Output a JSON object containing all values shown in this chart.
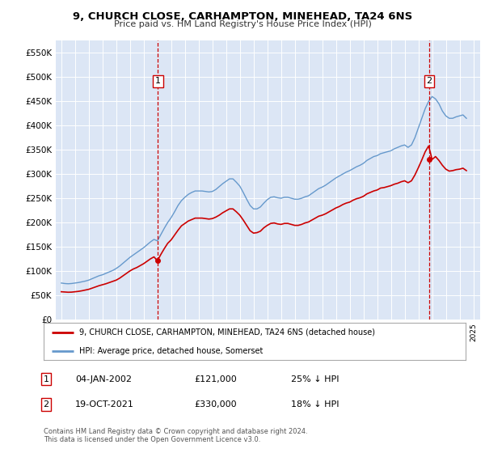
{
  "title": "9, CHURCH CLOSE, CARHAMPTON, MINEHEAD, TA24 6NS",
  "subtitle": "Price paid vs. HM Land Registry's House Price Index (HPI)",
  "ylim": [
    0,
    575000
  ],
  "xlim": [
    1994.6,
    2025.5
  ],
  "yticks": [
    0,
    50000,
    100000,
    150000,
    200000,
    250000,
    300000,
    350000,
    400000,
    450000,
    500000,
    550000
  ],
  "ytick_labels": [
    "£0",
    "£50K",
    "£100K",
    "£150K",
    "£200K",
    "£250K",
    "£300K",
    "£350K",
    "£400K",
    "£450K",
    "£500K",
    "£550K"
  ],
  "background_color": "#dce6f5",
  "hpi_color": "#6699cc",
  "price_color": "#cc0000",
  "sale1_x": 2002.03,
  "sale1_y": 121000,
  "sale1_label": "1",
  "sale1_date": "04-JAN-2002",
  "sale1_price": "£121,000",
  "sale1_hpi": "25% ↓ HPI",
  "sale2_x": 2021.8,
  "sale2_y": 330000,
  "sale2_label": "2",
  "sale2_date": "19-OCT-2021",
  "sale2_price": "£330,000",
  "sale2_hpi": "18% ↓ HPI",
  "legend_label1": "9, CHURCH CLOSE, CARHAMPTON, MINEHEAD, TA24 6NS (detached house)",
  "legend_label2": "HPI: Average price, detached house, Somerset",
  "footer": "Contains HM Land Registry data © Crown copyright and database right 2024.\nThis data is licensed under the Open Government Licence v3.0.",
  "hpi_data_x": [
    1995.0,
    1995.25,
    1995.5,
    1995.75,
    1996.0,
    1996.25,
    1996.5,
    1996.75,
    1997.0,
    1997.25,
    1997.5,
    1997.75,
    1998.0,
    1998.25,
    1998.5,
    1998.75,
    1999.0,
    1999.25,
    1999.5,
    1999.75,
    2000.0,
    2000.25,
    2000.5,
    2000.75,
    2001.0,
    2001.25,
    2001.5,
    2001.75,
    2002.0,
    2002.25,
    2002.5,
    2002.75,
    2003.0,
    2003.25,
    2003.5,
    2003.75,
    2004.0,
    2004.25,
    2004.5,
    2004.75,
    2005.0,
    2005.25,
    2005.5,
    2005.75,
    2006.0,
    2006.25,
    2006.5,
    2006.75,
    2007.0,
    2007.25,
    2007.5,
    2007.75,
    2008.0,
    2008.25,
    2008.5,
    2008.75,
    2009.0,
    2009.25,
    2009.5,
    2009.75,
    2010.0,
    2010.25,
    2010.5,
    2010.75,
    2011.0,
    2011.25,
    2011.5,
    2011.75,
    2012.0,
    2012.25,
    2012.5,
    2012.75,
    2013.0,
    2013.25,
    2013.5,
    2013.75,
    2014.0,
    2014.25,
    2014.5,
    2014.75,
    2015.0,
    2015.25,
    2015.5,
    2015.75,
    2016.0,
    2016.25,
    2016.5,
    2016.75,
    2017.0,
    2017.25,
    2017.5,
    2017.75,
    2018.0,
    2018.25,
    2018.5,
    2018.75,
    2019.0,
    2019.25,
    2019.5,
    2019.75,
    2020.0,
    2020.25,
    2020.5,
    2020.75,
    2021.0,
    2021.25,
    2021.5,
    2021.75,
    2022.0,
    2022.25,
    2022.5,
    2022.75,
    2023.0,
    2023.25,
    2023.5,
    2023.75,
    2024.0,
    2024.25,
    2024.5
  ],
  "hpi_data_y": [
    75000,
    74000,
    73500,
    74000,
    75000,
    76000,
    77500,
    79000,
    81000,
    84000,
    87000,
    90000,
    92000,
    95000,
    98000,
    101000,
    105000,
    110000,
    116000,
    122000,
    128000,
    133000,
    138000,
    143000,
    148000,
    154000,
    160000,
    165000,
    162000,
    175000,
    188000,
    200000,
    210000,
    222000,
    235000,
    245000,
    252000,
    258000,
    262000,
    265000,
    265000,
    265000,
    264000,
    263000,
    264000,
    268000,
    274000,
    280000,
    285000,
    290000,
    290000,
    283000,
    275000,
    262000,
    248000,
    235000,
    228000,
    228000,
    232000,
    240000,
    247000,
    252000,
    253000,
    251000,
    250000,
    252000,
    252000,
    250000,
    248000,
    248000,
    250000,
    253000,
    255000,
    260000,
    265000,
    270000,
    273000,
    277000,
    282000,
    287000,
    292000,
    296000,
    300000,
    304000,
    307000,
    311000,
    315000,
    318000,
    322000,
    328000,
    332000,
    336000,
    338000,
    342000,
    344000,
    346000,
    348000,
    352000,
    355000,
    358000,
    360000,
    355000,
    360000,
    375000,
    395000,
    415000,
    435000,
    450000,
    460000,
    455000,
    445000,
    430000,
    420000,
    415000,
    415000,
    418000,
    420000,
    422000,
    415000
  ],
  "price_data_x": [
    1995.0,
    1995.25,
    1995.5,
    1995.75,
    1996.0,
    1996.25,
    1996.5,
    1996.75,
    1997.0,
    1997.25,
    1997.5,
    1997.75,
    1998.0,
    1998.25,
    1998.5,
    1998.75,
    1999.0,
    1999.25,
    1999.5,
    1999.75,
    2000.0,
    2000.25,
    2000.5,
    2000.75,
    2001.0,
    2001.25,
    2001.5,
    2001.75,
    2002.0,
    2002.25,
    2002.5,
    2002.75,
    2003.0,
    2003.25,
    2003.5,
    2003.75,
    2004.0,
    2004.25,
    2004.5,
    2004.75,
    2005.0,
    2005.25,
    2005.5,
    2005.75,
    2006.0,
    2006.25,
    2006.5,
    2006.75,
    2007.0,
    2007.25,
    2007.5,
    2007.75,
    2008.0,
    2008.25,
    2008.5,
    2008.75,
    2009.0,
    2009.25,
    2009.5,
    2009.75,
    2010.0,
    2010.25,
    2010.5,
    2010.75,
    2011.0,
    2011.25,
    2011.5,
    2011.75,
    2012.0,
    2012.25,
    2012.5,
    2012.75,
    2013.0,
    2013.25,
    2013.5,
    2013.75,
    2014.0,
    2014.25,
    2014.5,
    2014.75,
    2015.0,
    2015.25,
    2015.5,
    2015.75,
    2016.0,
    2016.25,
    2016.5,
    2016.75,
    2017.0,
    2017.25,
    2017.5,
    2017.75,
    2018.0,
    2018.25,
    2018.5,
    2018.75,
    2019.0,
    2019.25,
    2019.5,
    2019.75,
    2020.0,
    2020.25,
    2020.5,
    2020.75,
    2021.0,
    2021.25,
    2021.5,
    2021.75,
    2022.0,
    2022.25,
    2022.5,
    2022.75,
    2023.0,
    2023.25,
    2023.5,
    2023.75,
    2024.0,
    2024.25,
    2024.5
  ],
  "price_data_y": [
    57000,
    56500,
    56000,
    56200,
    57000,
    57800,
    59000,
    60500,
    62000,
    64500,
    67000,
    69500,
    71500,
    73500,
    76000,
    78500,
    81000,
    85000,
    90000,
    95000,
    100000,
    104000,
    107000,
    111000,
    115000,
    120000,
    125000,
    129000,
    121000,
    134000,
    146000,
    157000,
    164000,
    174000,
    184000,
    193000,
    198000,
    203000,
    206000,
    209000,
    209000,
    209000,
    208000,
    207000,
    208000,
    211000,
    215000,
    220000,
    224000,
    228000,
    228000,
    222000,
    215000,
    205000,
    194000,
    183000,
    178000,
    179000,
    182000,
    189000,
    194000,
    198000,
    199000,
    197000,
    196000,
    198000,
    198000,
    196000,
    194000,
    194000,
    196000,
    199000,
    201000,
    205000,
    209000,
    213000,
    215000,
    218000,
    222000,
    226000,
    230000,
    233000,
    237000,
    240000,
    242000,
    246000,
    249000,
    251000,
    254000,
    259000,
    262000,
    265000,
    267000,
    271000,
    272000,
    274000,
    276000,
    279000,
    281000,
    284000,
    286000,
    282000,
    286000,
    298000,
    313000,
    329000,
    346000,
    358000,
    330000,
    336000,
    328000,
    318000,
    310000,
    306000,
    307000,
    309000,
    310000,
    312000,
    307000
  ]
}
